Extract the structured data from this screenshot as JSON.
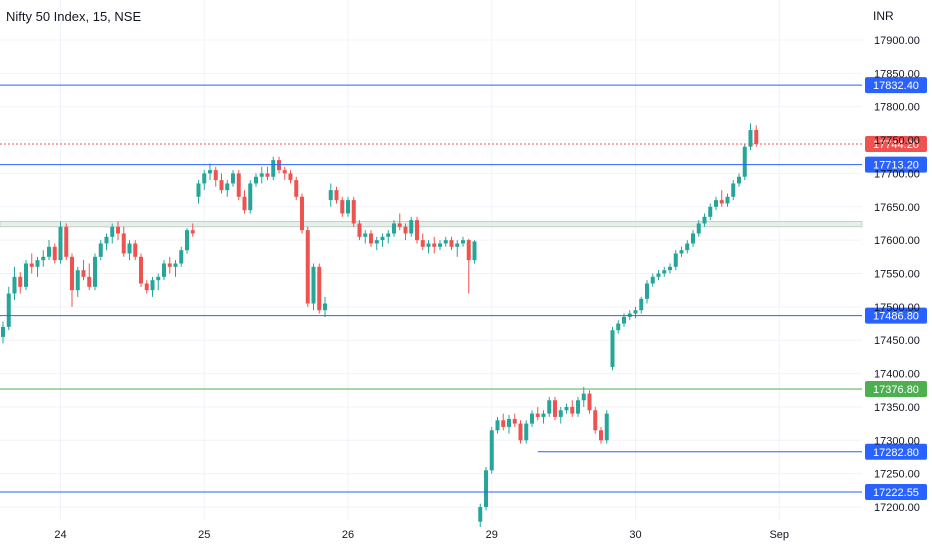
{
  "header": {
    "title": "Nifty 50 Index, 15, NSE",
    "currency": "INR"
  },
  "colors": {
    "up": "#26a69a",
    "down": "#ef5350",
    "blue_level": "#2962ff",
    "green_level": "#4caf50",
    "grid": "#f0f3fa",
    "axis_text": "#131722"
  },
  "chart_data": {
    "type": "candlestick",
    "ylim": [
      17180,
      17945
    ],
    "yticks": [
      17200,
      17250,
      17300,
      17350,
      17400,
      17450,
      17500,
      17550,
      17600,
      17650,
      17700,
      17750,
      17800,
      17850,
      17900
    ],
    "ytick_labels": [
      "17200.00",
      "17250.00",
      "17300.00",
      "17350.00",
      "17400.00",
      "17450.00",
      "17500.00",
      "17550.00",
      "17600.00",
      "17650.00",
      "17700.00",
      "17750.00",
      "17800.00",
      "17850.00",
      "17900.00"
    ],
    "xticks": [
      {
        "label": "24",
        "index": 10
      },
      {
        "label": "25",
        "index": 35
      },
      {
        "label": "26",
        "index": 60
      },
      {
        "label": "29",
        "index": 85
      },
      {
        "label": "30",
        "index": 110
      },
      {
        "label": "Sep",
        "index": 135
      }
    ],
    "levels": [
      {
        "value": 17832.4,
        "label": "17832.40",
        "color": "blue",
        "start_index": 0
      },
      {
        "value": 17744.2,
        "label": "17744.20",
        "color": "red_dotted",
        "start_index": 0
      },
      {
        "value": 17713.2,
        "label": "17713.20",
        "color": "blue",
        "start_index": 0
      },
      {
        "value": 17486.8,
        "label": "17486.80",
        "color": "blue",
        "start_index": 0
      },
      {
        "value": 17376.8,
        "label": "17376.80",
        "color": "green",
        "start_index": 0
      },
      {
        "value": 17282.8,
        "label": "17282.80",
        "color": "blue",
        "start_index": 93
      },
      {
        "value": 17222.55,
        "label": "17222.55",
        "color": "blue",
        "start_index": 0
      }
    ],
    "zone": {
      "low": 17620,
      "high": 17628
    },
    "candles": [
      [
        17455,
        17478,
        17445,
        17470
      ],
      [
        17470,
        17530,
        17465,
        17520
      ],
      [
        17520,
        17560,
        17510,
        17545
      ],
      [
        17545,
        17552,
        17520,
        17530
      ],
      [
        17530,
        17570,
        17525,
        17565
      ],
      [
        17565,
        17580,
        17550,
        17560
      ],
      [
        17560,
        17575,
        17545,
        17570
      ],
      [
        17570,
        17585,
        17560,
        17575
      ],
      [
        17575,
        17600,
        17570,
        17590
      ],
      [
        17590,
        17595,
        17565,
        17570
      ],
      [
        17570,
        17628,
        17565,
        17620
      ],
      [
        17620,
        17625,
        17570,
        17575
      ],
      [
        17575,
        17580,
        17500,
        17525
      ],
      [
        17525,
        17560,
        17515,
        17555
      ],
      [
        17555,
        17570,
        17540,
        17545
      ],
      [
        17545,
        17565,
        17525,
        17530
      ],
      [
        17530,
        17580,
        17525,
        17575
      ],
      [
        17575,
        17600,
        17570,
        17595
      ],
      [
        17595,
        17610,
        17585,
        17605
      ],
      [
        17605,
        17625,
        17595,
        17620
      ],
      [
        17620,
        17628,
        17600,
        17610
      ],
      [
        17610,
        17620,
        17575,
        17580
      ],
      [
        17580,
        17600,
        17570,
        17595
      ],
      [
        17595,
        17600,
        17570,
        17575
      ],
      [
        17575,
        17580,
        17530,
        17535
      ],
      [
        17535,
        17540,
        17520,
        17525
      ],
      [
        17525,
        17545,
        17515,
        17540
      ],
      [
        17540,
        17550,
        17525,
        17545
      ],
      [
        17545,
        17570,
        17540,
        17565
      ],
      [
        17565,
        17575,
        17550,
        17560
      ],
      [
        17560,
        17570,
        17545,
        17565
      ],
      [
        17565,
        17590,
        17560,
        17585
      ],
      [
        17585,
        17618,
        17580,
        17615
      ],
      [
        17615,
        17625,
        17605,
        17610
      ],
      [
        17665,
        17690,
        17655,
        17685
      ],
      [
        17685,
        17705,
        17675,
        17700
      ],
      [
        17700,
        17715,
        17690,
        17705
      ],
      [
        17705,
        17710,
        17680,
        17690
      ],
      [
        17690,
        17700,
        17670,
        17675
      ],
      [
        17675,
        17690,
        17665,
        17685
      ],
      [
        17685,
        17705,
        17680,
        17700
      ],
      [
        17700,
        17705,
        17660,
        17665
      ],
      [
        17665,
        17675,
        17640,
        17645
      ],
      [
        17645,
        17690,
        17640,
        17685
      ],
      [
        17685,
        17700,
        17680,
        17695
      ],
      [
        17695,
        17710,
        17685,
        17700
      ],
      [
        17700,
        17710,
        17690,
        17695
      ],
      [
        17695,
        17725,
        17690,
        17720
      ],
      [
        17720,
        17725,
        17700,
        17705
      ],
      [
        17705,
        17710,
        17690,
        17700
      ],
      [
        17700,
        17705,
        17685,
        17690
      ],
      [
        17690,
        17695,
        17660,
        17665
      ],
      [
        17665,
        17670,
        17610,
        17615
      ],
      [
        17615,
        17620,
        17500,
        17505
      ],
      [
        17505,
        17565,
        17495,
        17560
      ],
      [
        17560,
        17565,
        17490,
        17495
      ],
      [
        17495,
        17515,
        17485,
        17505
      ],
      [
        17660,
        17685,
        17650,
        17675
      ],
      [
        17675,
        17680,
        17655,
        17660
      ],
      [
        17660,
        17665,
        17635,
        17640
      ],
      [
        17640,
        17665,
        17635,
        17660
      ],
      [
        17660,
        17665,
        17620,
        17625
      ],
      [
        17625,
        17630,
        17600,
        17605
      ],
      [
        17605,
        17615,
        17595,
        17610
      ],
      [
        17610,
        17615,
        17590,
        17595
      ],
      [
        17595,
        17605,
        17585,
        17600
      ],
      [
        17600,
        17610,
        17590,
        17605
      ],
      [
        17605,
        17615,
        17595,
        17610
      ],
      [
        17610,
        17630,
        17605,
        17625
      ],
      [
        17625,
        17640,
        17615,
        17620
      ],
      [
        17620,
        17625,
        17600,
        17610
      ],
      [
        17610,
        17635,
        17605,
        17630
      ],
      [
        17630,
        17635,
        17595,
        17600
      ],
      [
        17600,
        17610,
        17585,
        17590
      ],
      [
        17590,
        17600,
        17580,
        17595
      ],
      [
        17595,
        17605,
        17580,
        17590
      ],
      [
        17590,
        17600,
        17585,
        17595
      ],
      [
        17595,
        17605,
        17590,
        17600
      ],
      [
        17600,
        17605,
        17585,
        17590
      ],
      [
        17590,
        17600,
        17575,
        17595
      ],
      [
        17595,
        17605,
        17590,
        17600
      ],
      [
        17600,
        17602,
        17520,
        17570
      ],
      [
        17570,
        17600,
        17565,
        17598
      ],
      [
        17178,
        17205,
        17170,
        17200
      ],
      [
        17200,
        17260,
        17195,
        17255
      ],
      [
        17255,
        17320,
        17250,
        17315
      ],
      [
        17315,
        17335,
        17310,
        17330
      ],
      [
        17330,
        17340,
        17315,
        17320
      ],
      [
        17320,
        17338,
        17310,
        17332
      ],
      [
        17332,
        17340,
        17320,
        17325
      ],
      [
        17325,
        17330,
        17295,
        17300
      ],
      [
        17300,
        17330,
        17295,
        17325
      ],
      [
        17325,
        17345,
        17320,
        17340
      ],
      [
        17340,
        17350,
        17330,
        17335
      ],
      [
        17335,
        17345,
        17325,
        17340
      ],
      [
        17340,
        17365,
        17335,
        17360
      ],
      [
        17360,
        17365,
        17330,
        17335
      ],
      [
        17335,
        17350,
        17325,
        17345
      ],
      [
        17345,
        17355,
        17340,
        17350
      ],
      [
        17350,
        17360,
        17335,
        17340
      ],
      [
        17340,
        17365,
        17335,
        17360
      ],
      [
        17360,
        17380,
        17350,
        17370
      ],
      [
        17370,
        17375,
        17340,
        17345
      ],
      [
        17345,
        17350,
        17310,
        17315
      ],
      [
        17315,
        17320,
        17295,
        17300
      ],
      [
        17300,
        17345,
        17295,
        17340
      ],
      [
        17410,
        17470,
        17405,
        17465
      ],
      [
        17465,
        17480,
        17460,
        17475
      ],
      [
        17475,
        17490,
        17470,
        17485
      ],
      [
        17485,
        17495,
        17480,
        17490
      ],
      [
        17490,
        17500,
        17483,
        17495
      ],
      [
        17495,
        17515,
        17490,
        17512
      ],
      [
        17512,
        17540,
        17505,
        17535
      ],
      [
        17535,
        17550,
        17530,
        17545
      ],
      [
        17545,
        17555,
        17540,
        17550
      ],
      [
        17550,
        17560,
        17545,
        17555
      ],
      [
        17555,
        17565,
        17550,
        17560
      ],
      [
        17560,
        17585,
        17555,
        17580
      ],
      [
        17580,
        17590,
        17575,
        17585
      ],
      [
        17585,
        17600,
        17580,
        17595
      ],
      [
        17595,
        17615,
        17590,
        17610
      ],
      [
        17610,
        17630,
        17605,
        17625
      ],
      [
        17625,
        17640,
        17620,
        17635
      ],
      [
        17635,
        17655,
        17630,
        17650
      ],
      [
        17650,
        17665,
        17645,
        17660
      ],
      [
        17660,
        17675,
        17650,
        17655
      ],
      [
        17655,
        17670,
        17650,
        17665
      ],
      [
        17665,
        17690,
        17660,
        17685
      ],
      [
        17685,
        17700,
        17680,
        17695
      ],
      [
        17695,
        17745,
        17690,
        17740
      ],
      [
        17740,
        17775,
        17735,
        17765
      ],
      [
        17765,
        17772,
        17740,
        17744
      ]
    ]
  }
}
